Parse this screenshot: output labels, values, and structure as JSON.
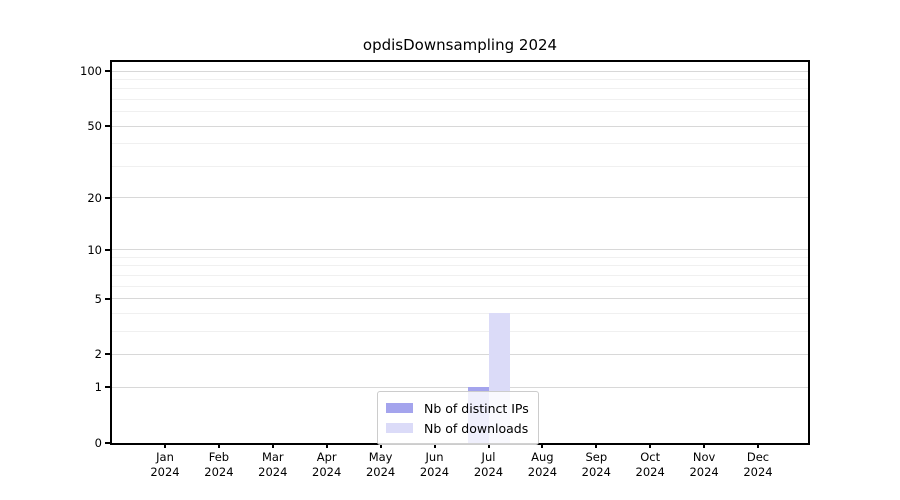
{
  "figure": {
    "title": "opdisDownsampling 2024"
  },
  "chart_data": {
    "type": "bar",
    "title": "opdisDownsampling 2024",
    "categories": [
      "Jan 2024",
      "Feb 2024",
      "Mar 2024",
      "Apr 2024",
      "May 2024",
      "Jun 2024",
      "Jul 2024",
      "Aug 2024",
      "Sep 2024",
      "Oct 2024",
      "Nov 2024",
      "Dec 2024"
    ],
    "series": [
      {
        "name": "Nb of distinct IPs",
        "color": "#a4a4ed",
        "values": [
          0,
          0,
          0,
          0,
          0,
          0,
          1,
          0,
          0,
          0,
          0,
          0
        ]
      },
      {
        "name": "Nb of downloads",
        "color": "#dbdbf8",
        "values": [
          0,
          0,
          0,
          0,
          0,
          0,
          4,
          0,
          0,
          0,
          0,
          0
        ]
      }
    ],
    "xlabel": "",
    "ylabel": "",
    "y_scale": "log1p",
    "ylim": [
      0,
      110
    ],
    "y_major_ticks": [
      0,
      1,
      2,
      5,
      10,
      20,
      50,
      100
    ],
    "y_minor_gridlines": [
      3,
      4,
      6,
      7,
      8,
      9,
      30,
      40,
      60,
      70,
      80,
      90
    ],
    "grid": true,
    "legend_position": "lower center",
    "colors": {
      "background": "#ffffff",
      "spine": "#000000",
      "major_grid": "#d8d8d8",
      "minor_grid": "#f0f0f0",
      "distinct_ips_bar": "#a4a4ed",
      "downloads_bar": "#dbdbf8"
    }
  }
}
